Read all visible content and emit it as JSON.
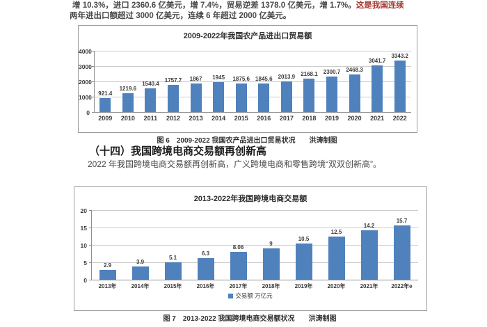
{
  "intro": {
    "line1_main": "增 10.3%，进口 2360.6 亿美元，增 7.4%，贸易逆差 1378.0 亿美元，增 1.7%。",
    "line1_red": "这是我国连续",
    "line2": "两年进出口额超过 3000 亿美元，连续 6 年超过 2000 亿美元。"
  },
  "section": {
    "heading": "（十四）我国跨境电商交易额再创新高",
    "paragraph": "2022 年我国跨境电商交易额再创新高，广义跨境电商和零售跨境“双双创新高”。"
  },
  "figures": {
    "fig6_caption": "图 6　2009-2022 我国农产品进出口贸易状况　　洪涛制图",
    "fig7_caption": "图 7　2013-2022 我国跨境电商交易额状况　　洪涛制图"
  },
  "colors": {
    "bar_blue": "#4f81bd",
    "grid_gray": "#cccccc",
    "axis_gray": "#8f8f8f",
    "red_text": "#a43a30"
  },
  "chart_data": [
    {
      "type": "bar",
      "title": "2009-2022年我国农产品进出口贸易额",
      "categories": [
        "2009",
        "2010",
        "2011",
        "2012",
        "2013",
        "2014",
        "2015",
        "2016",
        "2017",
        "2018",
        "2019",
        "2020",
        "2021",
        "2022"
      ],
      "values": [
        921.4,
        1219.6,
        1540.4,
        1757.7,
        1867,
        1945,
        1875.6,
        1845.6,
        2013.9,
        2168.1,
        2300.7,
        2468.3,
        3041.7,
        3343.2
      ],
      "value_labels": [
        "921.4",
        "1219.6",
        "1540.4",
        "1757.7",
        "1867",
        "1945",
        "1875.6",
        "1845.6",
        "2013.9",
        "2168.1",
        "2300.7",
        "2468.3",
        "3041.7",
        "3343.2"
      ],
      "ylim": [
        0,
        4000
      ],
      "yticks": [
        0,
        1000,
        2000,
        3000,
        4000
      ],
      "legend": null,
      "bar_color": "#4f81bd",
      "grid": "on",
      "legend_position": "none"
    },
    {
      "type": "bar",
      "title": "2013-2022年我国跨境电商交易额",
      "categories": [
        "2013年",
        "2014年",
        "2015年",
        "2016年",
        "2017年",
        "2018年",
        "2019年",
        "2020年",
        "2021年",
        "2022年e"
      ],
      "values": [
        2.9,
        3.9,
        5.1,
        6.3,
        8.06,
        9,
        10.5,
        12.5,
        14.2,
        15.7
      ],
      "value_labels": [
        "2.9",
        "3.9",
        "5.1",
        "6.3",
        "8.06",
        "9",
        "10.5",
        "12.5",
        "14.2",
        "15.7"
      ],
      "ylim": [
        0,
        20
      ],
      "yticks": [
        0,
        5,
        10,
        15,
        20
      ],
      "legend": "交易额 万亿元",
      "bar_color": "#4f81bd",
      "grid": "on",
      "legend_position": "bottom"
    }
  ]
}
